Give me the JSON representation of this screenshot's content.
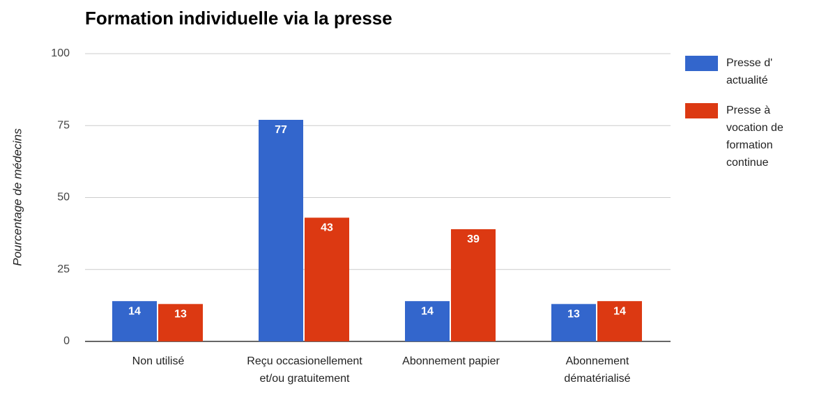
{
  "chart_data": {
    "type": "bar",
    "title": "Formation individuelle via la presse",
    "ylabel": "Pourcentage de médecins",
    "categories": [
      "Non utilisé",
      "Reçu occasionellement et/ou gratuitement",
      "Abonnement papier",
      "Abonnement dématérialisé"
    ],
    "series": [
      {
        "name": "Presse d' actualité",
        "color": "#3366cc",
        "values": [
          14,
          77,
          14,
          13
        ]
      },
      {
        "name": "Presse à vocation de formation continue",
        "color": "#dc3912",
        "values": [
          13,
          43,
          39,
          14
        ]
      }
    ],
    "ylim": [
      0,
      100
    ],
    "yticks": [
      0,
      25,
      50,
      75,
      100
    ],
    "grid": true,
    "legend": "right"
  }
}
